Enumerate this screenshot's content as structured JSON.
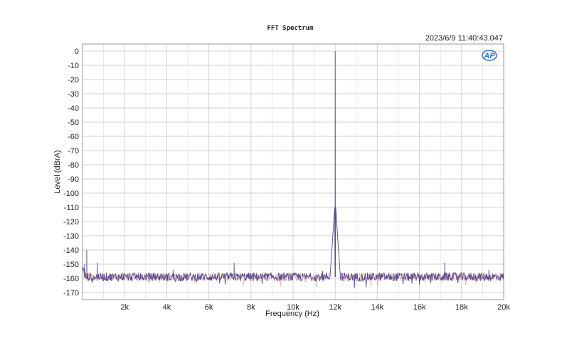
{
  "chart_data": {
    "type": "line",
    "title": "FFT Spectrum",
    "timestamp": "2023/6/9 11:40:43.047",
    "xlabel": "Frequency (Hz)",
    "ylabel": "Level (dBrA)",
    "xlim": [
      0,
      20000
    ],
    "ylim": [
      -175,
      5
    ],
    "x_ticks": [
      {
        "value": 2000,
        "label": "2k"
      },
      {
        "value": 4000,
        "label": "4k"
      },
      {
        "value": 6000,
        "label": "6k"
      },
      {
        "value": 8000,
        "label": "8k"
      },
      {
        "value": 10000,
        "label": "10k"
      },
      {
        "value": 12000,
        "label": "12k"
      },
      {
        "value": 14000,
        "label": "14k"
      },
      {
        "value": 16000,
        "label": "16k"
      },
      {
        "value": 18000,
        "label": "18k"
      },
      {
        "value": 20000,
        "label": "20k"
      }
    ],
    "y_ticks": [
      {
        "value": 0,
        "label": "0"
      },
      {
        "value": -10,
        "label": "-10"
      },
      {
        "value": -20,
        "label": "-20"
      },
      {
        "value": -30,
        "label": "-30"
      },
      {
        "value": -40,
        "label": "-40"
      },
      {
        "value": -50,
        "label": "-50"
      },
      {
        "value": -60,
        "label": "-60"
      },
      {
        "value": -70,
        "label": "-70"
      },
      {
        "value": -80,
        "label": "-80"
      },
      {
        "value": -90,
        "label": "-90"
      },
      {
        "value": -100,
        "label": "-100"
      },
      {
        "value": -110,
        "label": "-110"
      },
      {
        "value": -120,
        "label": "-120"
      },
      {
        "value": -130,
        "label": "-130"
      },
      {
        "value": -140,
        "label": "-140"
      },
      {
        "value": -150,
        "label": "-150"
      },
      {
        "value": -160,
        "label": "-160"
      },
      {
        "value": -170,
        "label": "-170"
      }
    ],
    "grid": true,
    "noise_floor_db": -159,
    "series": [
      {
        "color": "#5a4a8a",
        "peaks": [
          {
            "x": 100,
            "y": -150
          },
          {
            "x": 200,
            "y": -140
          },
          {
            "x": 700,
            "y": -149
          },
          {
            "x": 4300,
            "y": -154
          },
          {
            "x": 7200,
            "y": -149
          },
          {
            "x": 11400,
            "y": -155
          },
          {
            "x": 12000,
            "y": 0
          },
          {
            "x": 17200,
            "y": -149
          },
          {
            "x": 19300,
            "y": -154
          }
        ]
      },
      {
        "color": "#d07a8a",
        "peaks": []
      }
    ],
    "logo": "AP"
  }
}
